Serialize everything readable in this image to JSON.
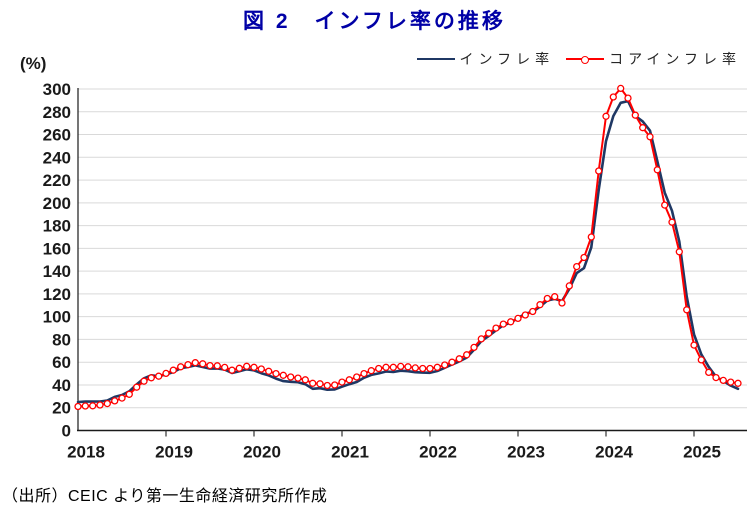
{
  "title": {
    "text": "図 2　インフレ率の推移"
  },
  "axis_unit_label": "(%)",
  "legend": {
    "items": [
      {
        "label": "インフレ率",
        "color": "#1f3864",
        "marker": "line"
      },
      {
        "label": "コアインフレ率",
        "color": "#ff0000",
        "marker": "line-circle"
      }
    ]
  },
  "source": {
    "text": "（出所）CEIC より第一生命経済研究所作成"
  },
  "chart_data": {
    "type": "line",
    "title": "図 2　インフレ率の推移",
    "ylabel": "(%)",
    "ylim": [
      0,
      300
    ],
    "yticks": [
      0,
      20,
      40,
      60,
      80,
      100,
      120,
      140,
      160,
      180,
      200,
      220,
      240,
      260,
      280,
      300
    ],
    "xtick_labels": [
      "2018",
      "2019",
      "2020",
      "2021",
      "2022",
      "2023",
      "2024",
      "2025"
    ],
    "x_frequency": "monthly",
    "x_range": "2018-01 to 2025-07",
    "grid": true,
    "legend_position": "top-right",
    "colors": {
      "grid": "#d9d9d9",
      "axis": "#1a1a1a",
      "tick": "#333333"
    },
    "series": [
      {
        "name": "インフレ率",
        "color": "#1f3864",
        "marker": "none",
        "values": [
          25.0,
          25.4,
          25.4,
          25.5,
          26.3,
          29.5,
          31.2,
          34.4,
          40.5,
          45.9,
          48.5,
          47.6,
          49.3,
          51.3,
          54.7,
          55.8,
          57.3,
          55.8,
          54.4,
          54.5,
          53.5,
          50.5,
          52.1,
          53.8,
          52.9,
          50.3,
          48.4,
          45.6,
          43.4,
          42.8,
          42.4,
          40.7,
          36.6,
          37.2,
          35.8,
          36.1,
          38.5,
          40.7,
          42.6,
          46.3,
          48.8,
          50.2,
          51.8,
          51.4,
          52.5,
          52.1,
          51.2,
          50.9,
          50.7,
          52.3,
          55.1,
          58.0,
          60.7,
          64.0,
          71.0,
          78.5,
          83.0,
          88.0,
          92.4,
          94.8,
          98.8,
          102.5,
          104.3,
          108.8,
          114.2,
          115.6,
          113.8,
          124.4,
          138.3,
          142.7,
          160.9,
          211.4,
          254.2,
          276.2,
          287.9,
          289.4,
          276.4,
          271.5,
          263.4,
          236.7,
          209.0,
          193.0,
          166.0,
          117.8,
          84.5,
          66.9,
          55.9,
          47.3,
          43.5,
          39.4,
          36.6
        ]
      },
      {
        "name": "コアインフレ率",
        "color": "#ff0000",
        "marker": "open-circle",
        "values": [
          21.1,
          21.5,
          21.7,
          22.4,
          23.6,
          26.0,
          28.5,
          31.8,
          38.0,
          43.3,
          46.3,
          47.7,
          50.2,
          53.0,
          56.0,
          57.8,
          59.6,
          58.6,
          57.0,
          56.8,
          55.4,
          53.0,
          54.6,
          56.4,
          55.5,
          54.0,
          52.0,
          50.0,
          48.5,
          47.0,
          46.0,
          44.5,
          41.5,
          41.0,
          39.5,
          40.0,
          42.5,
          44.5,
          47.0,
          50.0,
          52.5,
          54.5,
          55.5,
          55.5,
          56.3,
          56.0,
          55.0,
          54.5,
          54.5,
          55.5,
          57.5,
          60.0,
          63.0,
          66.5,
          73.0,
          80.5,
          85.5,
          90.0,
          93.5,
          95.5,
          98.5,
          101.5,
          104.5,
          110.5,
          116.0,
          117.5,
          112.0,
          127.0,
          144.0,
          152.0,
          170.0,
          228.0,
          276.0,
          293.0,
          300.5,
          292.0,
          277.0,
          266.0,
          258.0,
          229.0,
          198.0,
          183.0,
          157.0,
          106.0,
          75.0,
          62.0,
          51.0,
          46.5,
          44.0,
          42.5,
          41.5
        ]
      }
    ]
  }
}
